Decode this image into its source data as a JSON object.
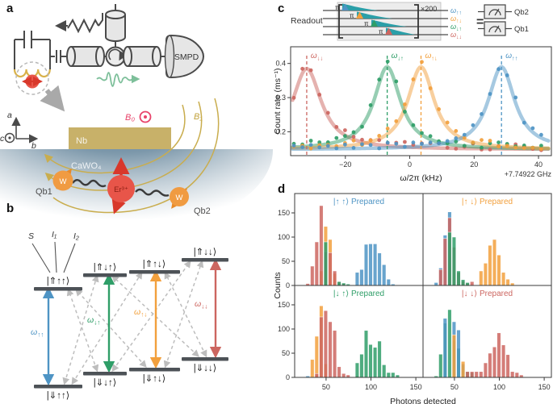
{
  "panel_letters": {
    "a": "a",
    "b": "b",
    "c": "c",
    "d": "d"
  },
  "panel_a": {
    "smpd_label": "SMPD",
    "nb_label": "Nb",
    "crystal_label": "CaWO₄",
    "b0_label": "B₀",
    "b1_label": "B₁",
    "er_label": "Er³⁺",
    "w_label_1": "W",
    "w_label_2": "W",
    "qb1_label": "Qb1",
    "qb2_label": "Qb2",
    "axis_a": "a",
    "axis_b": "b",
    "axis_c": "c"
  },
  "panel_b": {
    "spin_labels": {
      "s": "S",
      "i1": "I₁",
      "i2": "I₂"
    },
    "states_top": [
      "|⇑↑↑⟩",
      "|⇑↓↑⟩",
      "|⇑↑↓⟩",
      "|⇑↓↓⟩"
    ],
    "states_bottom": [
      "|⇓↑↑⟩",
      "|⇓↓↑⟩",
      "|⇓↑↓⟩",
      "|⇓↓↓⟩"
    ],
    "transitions": [
      {
        "symbol": "ω",
        "sub": "↑↑",
        "color": "#4e94c4"
      },
      {
        "symbol": "ω",
        "sub": "↓↑",
        "color": "#2f9e68"
      },
      {
        "symbol": "ω",
        "sub": "↑↓",
        "color": "#f2a03d"
      },
      {
        "symbol": "ω",
        "sub": "↓↓",
        "color": "#cc6660"
      }
    ]
  },
  "panel_c": {
    "readout_label": "Readout",
    "repeat_label": "×200",
    "pi_label": "π",
    "line_labels": [
      {
        "symbol": "ω",
        "sub": "↑↑",
        "color": "#4e94c4"
      },
      {
        "symbol": "ω",
        "sub": "↑↓",
        "color": "#f2a03d"
      },
      {
        "symbol": "ω",
        "sub": "↓↑",
        "color": "#2f9e68"
      },
      {
        "symbol": "ω",
        "sub": "↓↓",
        "color": "#cc6660"
      }
    ],
    "equals": "=",
    "qubit_labels": [
      "Qb2",
      "Qb1"
    ]
  },
  "chart_data": [
    {
      "type": "line",
      "description": "Spin spectroscopy: Lorentzian count-rate peaks at the four ESR transition frequencies",
      "xlabel": "ω/2π (kHz)",
      "x_offset_label": "+7.74922 GHz",
      "ylabel": "Count rate (ms⁻¹)",
      "xlim": [
        -37,
        44
      ],
      "ylim": [
        0.13,
        0.43
      ],
      "xticks": [
        -20,
        0,
        20,
        40
      ],
      "yticks": [
        0.2,
        0.3,
        0.4
      ],
      "baseline": 0.148,
      "dot_step_khz": 2.65,
      "series": [
        {
          "name": "ω↓↓",
          "label_symbol": "ω",
          "label_sub": "↓↓",
          "color": "#cc6660",
          "center_khz": -32,
          "peak": 0.385,
          "fwhm_khz": 11
        },
        {
          "name": "ω↓↑",
          "label_symbol": "ω",
          "label_sub": "↓↑",
          "color": "#2f9e68",
          "center_khz": -7,
          "peak": 0.39,
          "fwhm_khz": 10
        },
        {
          "name": "ω↑↓",
          "label_symbol": "ω",
          "label_sub": "↑↓",
          "color": "#f2a03d",
          "center_khz": 3.5,
          "peak": 0.39,
          "fwhm_khz": 10
        },
        {
          "name": "ω↑↑",
          "label_symbol": "ω",
          "label_sub": "↑↑",
          "color": "#4e94c4",
          "center_khz": 28.5,
          "peak": 0.39,
          "fwhm_khz": 10
        }
      ]
    },
    {
      "type": "histogram_grid",
      "description": "Photon-count histograms for the four prepared nuclear-spin states, 2x2 grid",
      "xlabel": "Photons detected",
      "ylabel": "Counts",
      "bin_width": 5,
      "xlim": [
        15,
        158
      ],
      "ylim": [
        0,
        190
      ],
      "xticks": [
        50,
        100,
        150
      ],
      "yticks": [
        0,
        50,
        100,
        150
      ],
      "bar_opacity": 0.85,
      "panels": [
        {
          "title": "|↑ ↑⟩ Prepared",
          "title_color": "#4e94c4",
          "series": [
            {
              "color": "#f2a03d",
              "start": 45,
              "counts": [
                30,
                122,
                95,
                25
              ]
            },
            {
              "color": "#cc6660",
              "start": 30,
              "counts": [
                4,
                40,
                90,
                165,
                70,
                68,
                30,
                8,
                4
              ]
            },
            {
              "color": "#2f9e68",
              "start": 50,
              "counts": [
                90,
                0,
                0,
                8,
                5,
                3
              ]
            },
            {
              "color": "#4e94c4",
              "start": 85,
              "counts": [
                27,
                33,
                85,
                86,
                86,
                67,
                43,
                13,
                3
              ]
            }
          ]
        },
        {
          "title": "|↑ ↓⟩ Prepared",
          "title_color": "#f2a03d",
          "series": [
            {
              "color": "#4e94c4",
              "start": 30,
              "counts": [
                6,
                36,
                104,
                152
              ]
            },
            {
              "color": "#cc6660",
              "start": 35,
              "counts": [
                33,
                97,
                140,
                79,
                27,
                9,
                5,
                8
              ]
            },
            {
              "color": "#2f9e68",
              "start": 45,
              "counts": [
                110,
                100,
                30,
                12,
                6
              ]
            },
            {
              "color": "#f2a03d",
              "start": 80,
              "counts": [
                30,
                46,
                83,
                95,
                63,
                27,
                13,
                5
              ]
            }
          ]
        },
        {
          "title": "|↓ ↑⟩ Prepared",
          "title_color": "#2f9e68",
          "series": [
            {
              "color": "#4e94c4",
              "start": 30,
              "counts": [
                3
              ]
            },
            {
              "color": "#f2a03d",
              "start": 35,
              "counts": [
                37,
                85,
                148,
                28
              ]
            },
            {
              "color": "#cc6660",
              "start": 40,
              "counts": [
                8,
                125,
                138,
                115,
                97,
                22,
                8,
                5,
                0,
                3
              ]
            },
            {
              "color": "#2f9e68",
              "start": 85,
              "counts": [
                30,
                48,
                97,
                68,
                62,
                75,
                26,
                10,
                10,
                5
              ]
            }
          ]
        },
        {
          "title": "|↓ ↓⟩ Prepared",
          "title_color": "#cc6660",
          "series": [
            {
              "color": "#2f9e68",
              "start": 30,
              "counts": [
                3,
                48,
                112,
                140,
                75,
                60,
                25,
                12,
                10
              ]
            },
            {
              "color": "#4e94c4",
              "start": 40,
              "counts": [
                122,
                0,
                115,
                98,
                28
              ]
            },
            {
              "color": "#f2a03d",
              "start": 50,
              "counts": [
                88,
                0,
                33
              ]
            },
            {
              "color": "#cc6660",
              "start": 65,
              "counts": [
                12,
                12,
                12,
                12,
                30,
                50,
                63,
                92,
                67,
                47,
                12,
                10,
                5
              ]
            }
          ]
        }
      ]
    }
  ]
}
